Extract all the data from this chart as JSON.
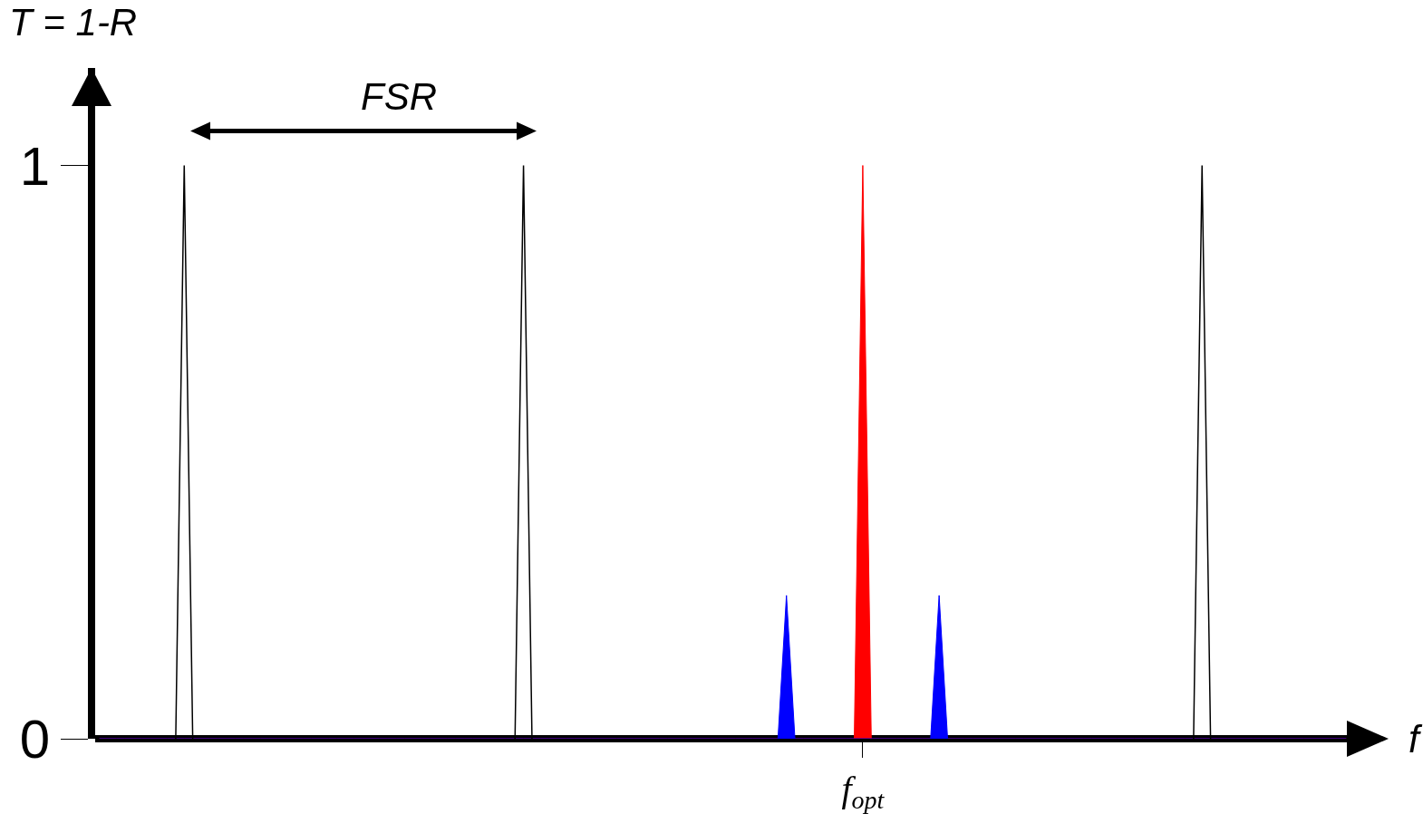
{
  "chart_data": {
    "type": "line",
    "ylabel": "T = 1-R",
    "annotations": [
      "FSR",
      "f"
    ],
    "categories": [
      null,
      null,
      null,
      null,
      null,
      null,
      null,
      null,
      null,
      null,
      null,
      null,
      null,
      null,
      null,
      null,
      null,
      null,
      null,
      null,
      null,
      null,
      null,
      null,
      null,
      null,
      null,
      null,
      null,
      null,
      null,
      null,
      null,
      null,
      null,
      null,
      null,
      null,
      null,
      null,
      null,
      null,
      null,
      null,
      null,
      null,
      null,
      null,
      null,
      null,
      null,
      null,
      null,
      null,
      null,
      null,
      null,
      null,
      null,
      null,
      null,
      null,
      null,
      null,
      null,
      null,
      null,
      null,
      null,
      null,
      null,
      null,
      null,
      null,
      null,
      null,
      null,
      null,
      null,
      null,
      null,
      null,
      null,
      null,
      null,
      null,
      null,
      null,
      null,
      null,
      "f$_{opt}$",
      null,
      null,
      null,
      null,
      null,
      null,
      null,
      null,
      null,
      null,
      null,
      null,
      null,
      null,
      null,
      null,
      null,
      null,
      null,
      null,
      null,
      null,
      null,
      null,
      null,
      null,
      null,
      null,
      null,
      null,
      null,
      null,
      null,
      null,
      null,
      null,
      null,
      null,
      null,
      null,
      null,
      null,
      null,
      null,
      null,
      null,
      null,
      null,
      null,
      null,
      null,
      null,
      null,
      null,
      null,
      null,
      null
    ],
    "series": [
      {
        "type": "area",
        "color": "#ff0000",
        "values": [
          0,
          0,
          0,
          0,
          0,
          0,
          0,
          0,
          0,
          0,
          0,
          0,
          0,
          0,
          0,
          0,
          0,
          0,
          0,
          0,
          0,
          0,
          0,
          0,
          0,
          0,
          0,
          0,
          0,
          0,
          0,
          0,
          0,
          0,
          0,
          0,
          0,
          0,
          0,
          0,
          0,
          0,
          0,
          0,
          0,
          0,
          0,
          0,
          0,
          0,
          0,
          0,
          0,
          0,
          0,
          0,
          0,
          0,
          0,
          0,
          0,
          0,
          0,
          0,
          0,
          0,
          0,
          0,
          0,
          0,
          0,
          0,
          0,
          0,
          0,
          0,
          0,
          0,
          0,
          0,
          0,
          0,
          0,
          0,
          0,
          0,
          0,
          0,
          0,
          0,
          1,
          0,
          0,
          0,
          0,
          0,
          0,
          0,
          0,
          0,
          0,
          0,
          0,
          0,
          0,
          0,
          0,
          0,
          0,
          0,
          0,
          0,
          0,
          0,
          0,
          0,
          0,
          0,
          0,
          0,
          0,
          0,
          0,
          0,
          0,
          0,
          0,
          0,
          0,
          0,
          0,
          0,
          0,
          0,
          0,
          0,
          0,
          0,
          0,
          0,
          0,
          0,
          0,
          0,
          0,
          0,
          0,
          0
        ]
      },
      {
        "type": "area",
        "color": "#0000ff",
        "values": [
          0,
          0,
          0,
          0,
          0,
          0,
          0,
          0,
          0,
          0,
          0,
          0,
          0,
          0,
          0,
          0,
          0,
          0,
          0,
          0,
          0,
          0,
          0,
          0,
          0,
          0,
          0,
          0,
          0,
          0,
          0,
          0,
          0,
          0,
          0,
          0,
          0,
          0,
          0,
          0,
          0,
          0,
          0,
          0,
          0,
          0,
          0,
          0,
          0,
          0,
          0,
          0,
          0,
          0,
          0,
          0,
          0,
          0,
          0,
          0,
          0,
          0,
          0,
          0,
          0,
          0,
          0,
          0,
          0,
          0,
          0,
          0,
          0,
          0,
          0,
          0,
          0,
          0,
          0,
          0,
          0,
          0.25,
          0,
          0,
          0,
          0,
          0,
          0,
          0,
          0,
          0,
          0,
          0,
          0,
          0,
          0,
          0,
          0,
          0,
          0.25,
          0,
          0,
          0,
          0,
          0,
          0,
          0,
          0,
          0,
          0,
          0,
          0,
          0,
          0,
          0,
          0,
          0,
          0,
          0,
          0,
          0,
          0,
          0,
          0,
          0,
          0,
          0,
          0,
          0,
          0,
          0,
          0,
          0,
          0,
          0,
          0,
          0,
          0,
          0,
          0,
          0,
          0,
          0,
          0,
          0,
          0,
          0,
          0
        ]
      },
      {
        "type": "line",
        "color": "#000000",
        "values": [
          null,
          null,
          null,
          null,
          null,
          null,
          null,
          null,
          null,
          0,
          1,
          0,
          null,
          null,
          null,
          null,
          null,
          null,
          null,
          null,
          null,
          null,
          null,
          null,
          null,
          null,
          null,
          null,
          null,
          null,
          null,
          null,
          null,
          null,
          null,
          null,
          null,
          null,
          null,
          null,
          null,
          null,
          null,
          null,
          null,
          null,
          null,
          null,
          null,
          0,
          1,
          0,
          null,
          null,
          null,
          null,
          null,
          null,
          null,
          null,
          null,
          null,
          null,
          null,
          null,
          null,
          null,
          null,
          null,
          null,
          null,
          null,
          null,
          null,
          null,
          null,
          null,
          null,
          null,
          null,
          null,
          null,
          null,
          null,
          null,
          null,
          null,
          null,
          null,
          null,
          null,
          null,
          null,
          null,
          null,
          null,
          null,
          null,
          null,
          null,
          null,
          null,
          null,
          null,
          null,
          null,
          null,
          null,
          null,
          null,
          null,
          null,
          null,
          null,
          null,
          null,
          null,
          null,
          null,
          null,
          null,
          null,
          null,
          null,
          null,
          null,
          null,
          null,
          null,
          0,
          1,
          0,
          null,
          null,
          null,
          null,
          null,
          null,
          null,
          null,
          null,
          null,
          null,
          null,
          null,
          null,
          null,
          null
        ]
      }
    ],
    "ylim": [
      0,
      1.17
    ],
    "yticks": [
      0,
      1
    ],
    "grid": false
  }
}
